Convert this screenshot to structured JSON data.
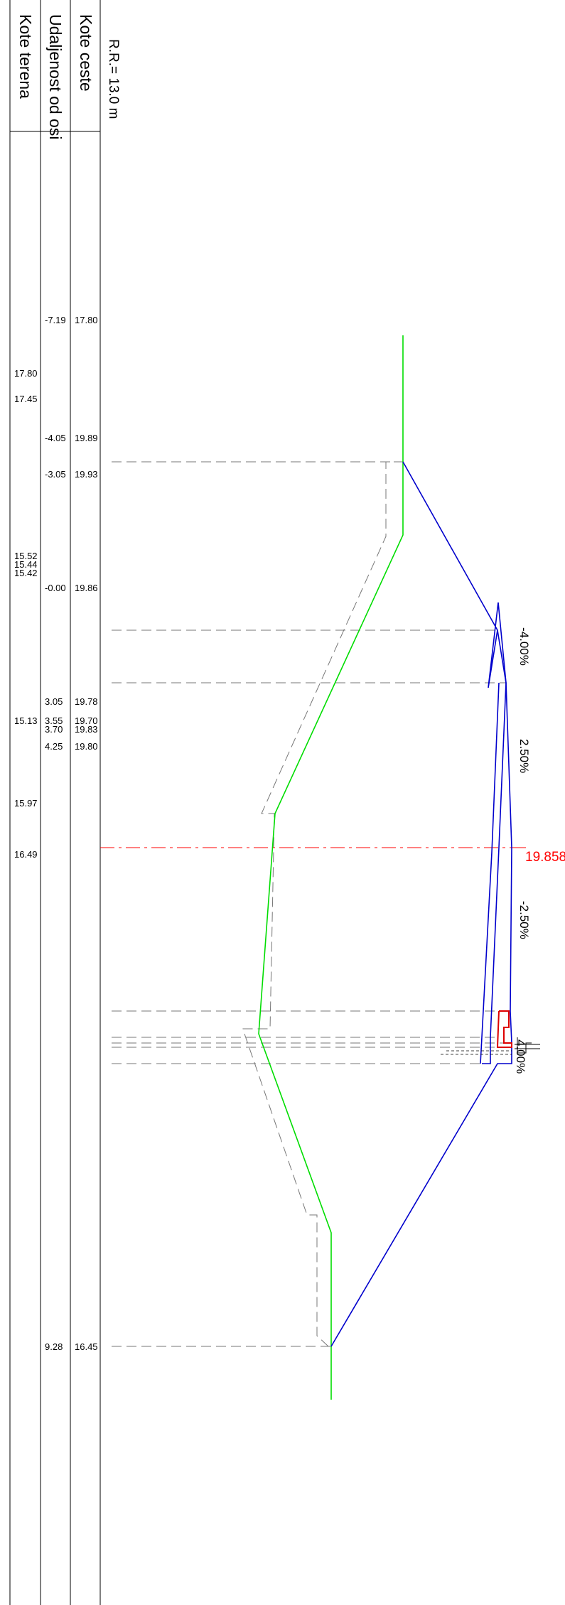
{
  "headers": {
    "terrain": "Kote terena",
    "distance": "Udaljenost od osi",
    "road": "Kote ceste"
  },
  "radius_label": "R.R.= 13.0 m",
  "terrain_elevations": [
    "17.80",
    "17.45",
    "15.52",
    "15.44",
    "15.42",
    "15.13",
    "15.97",
    "16.49"
  ],
  "stations": [
    {
      "distance": "-7.19",
      "road": "17.80"
    },
    {
      "distance": "-4.05",
      "road": "19.89"
    },
    {
      "distance": "-3.05",
      "road": "19.93"
    },
    {
      "distance": "-0.00",
      "road": "19.86"
    },
    {
      "distance": "3.05",
      "road": "19.78"
    },
    {
      "distance": "3.55",
      "road": "19.70"
    },
    {
      "distance": "3.70",
      "road": "19.83"
    },
    {
      "distance": "4.25",
      "road": "19.80"
    },
    {
      "distance": "9.28",
      "road": "16.45"
    }
  ],
  "slopes": [
    "-4.00%",
    "2.50%",
    "-2.50%",
    "4.00%"
  ],
  "axis_elevation": "19.858",
  "colors": {
    "terrain": "#00dd00",
    "road": "#0000cc",
    "axis": "#ff0000",
    "guide": "#777777",
    "table": "#000000"
  }
}
